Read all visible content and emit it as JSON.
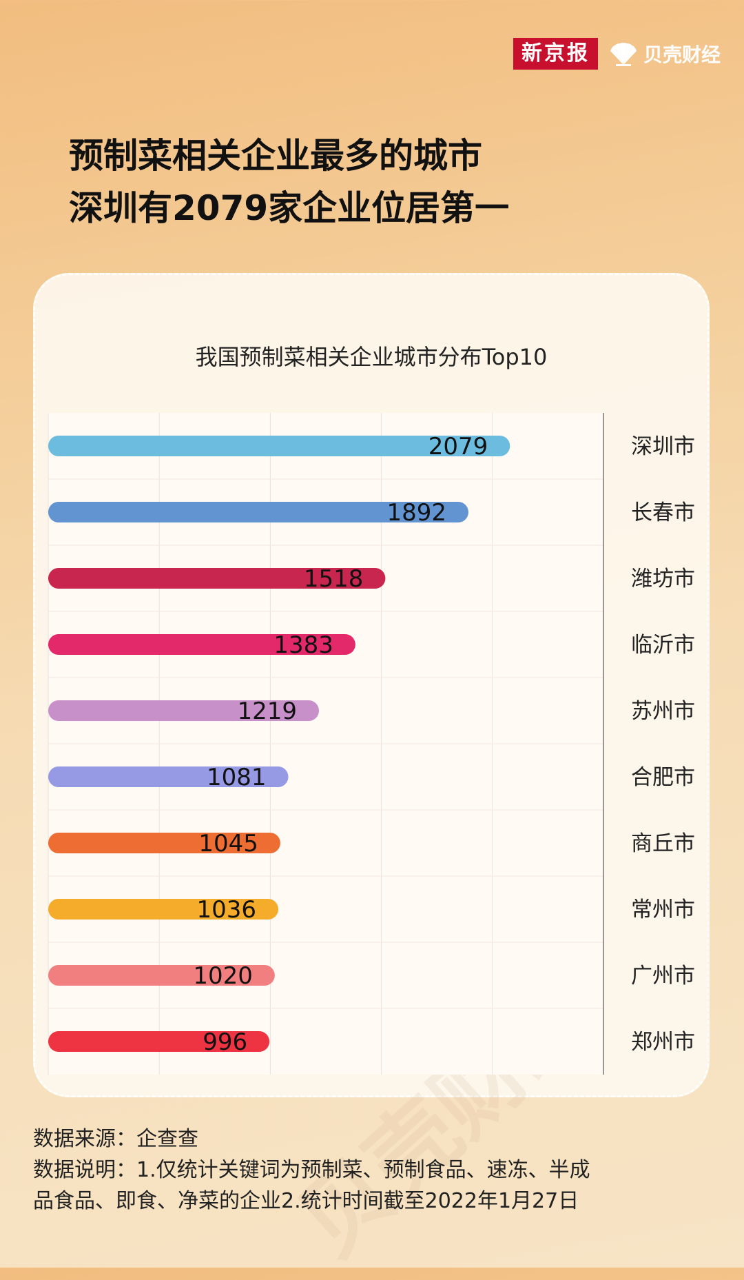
{
  "brand": {
    "newspaper": "新京报",
    "media": "贝壳财经"
  },
  "headline": {
    "line1": "预制菜相关企业最多的城市",
    "line2": "深圳有2079家企业位居第一"
  },
  "watermark": "贝壳财经",
  "chart_data": {
    "type": "bar",
    "orientation": "horizontal",
    "title": "我国预制菜相关企业城市分布Top10",
    "categories": [
      "深圳市",
      "长春市",
      "潍坊市",
      "临沂市",
      "苏州市",
      "合肥市",
      "商丘市",
      "常州市",
      "广州市",
      "郑州市"
    ],
    "values": [
      2079,
      1892,
      1518,
      1383,
      1219,
      1081,
      1045,
      1036,
      1020,
      996
    ],
    "colors": [
      "#6cbcdf",
      "#6294d2",
      "#c8264f",
      "#e3296a",
      "#c890c8",
      "#9699e4",
      "#ee6d32",
      "#f4ac2a",
      "#f17f7f",
      "#ee3443"
    ],
    "xlim": [
      0,
      2500
    ],
    "category_axis": "right",
    "grid": true,
    "data_labels": true
  },
  "footer": {
    "source": "数据来源：企查查",
    "note_line1": "数据说明：1.仅统计关键词为预制菜、预制食品、速冻、半成",
    "note_line2": "品食品、即食、净菜的企业2.统计时间截至2022年1月27日"
  }
}
